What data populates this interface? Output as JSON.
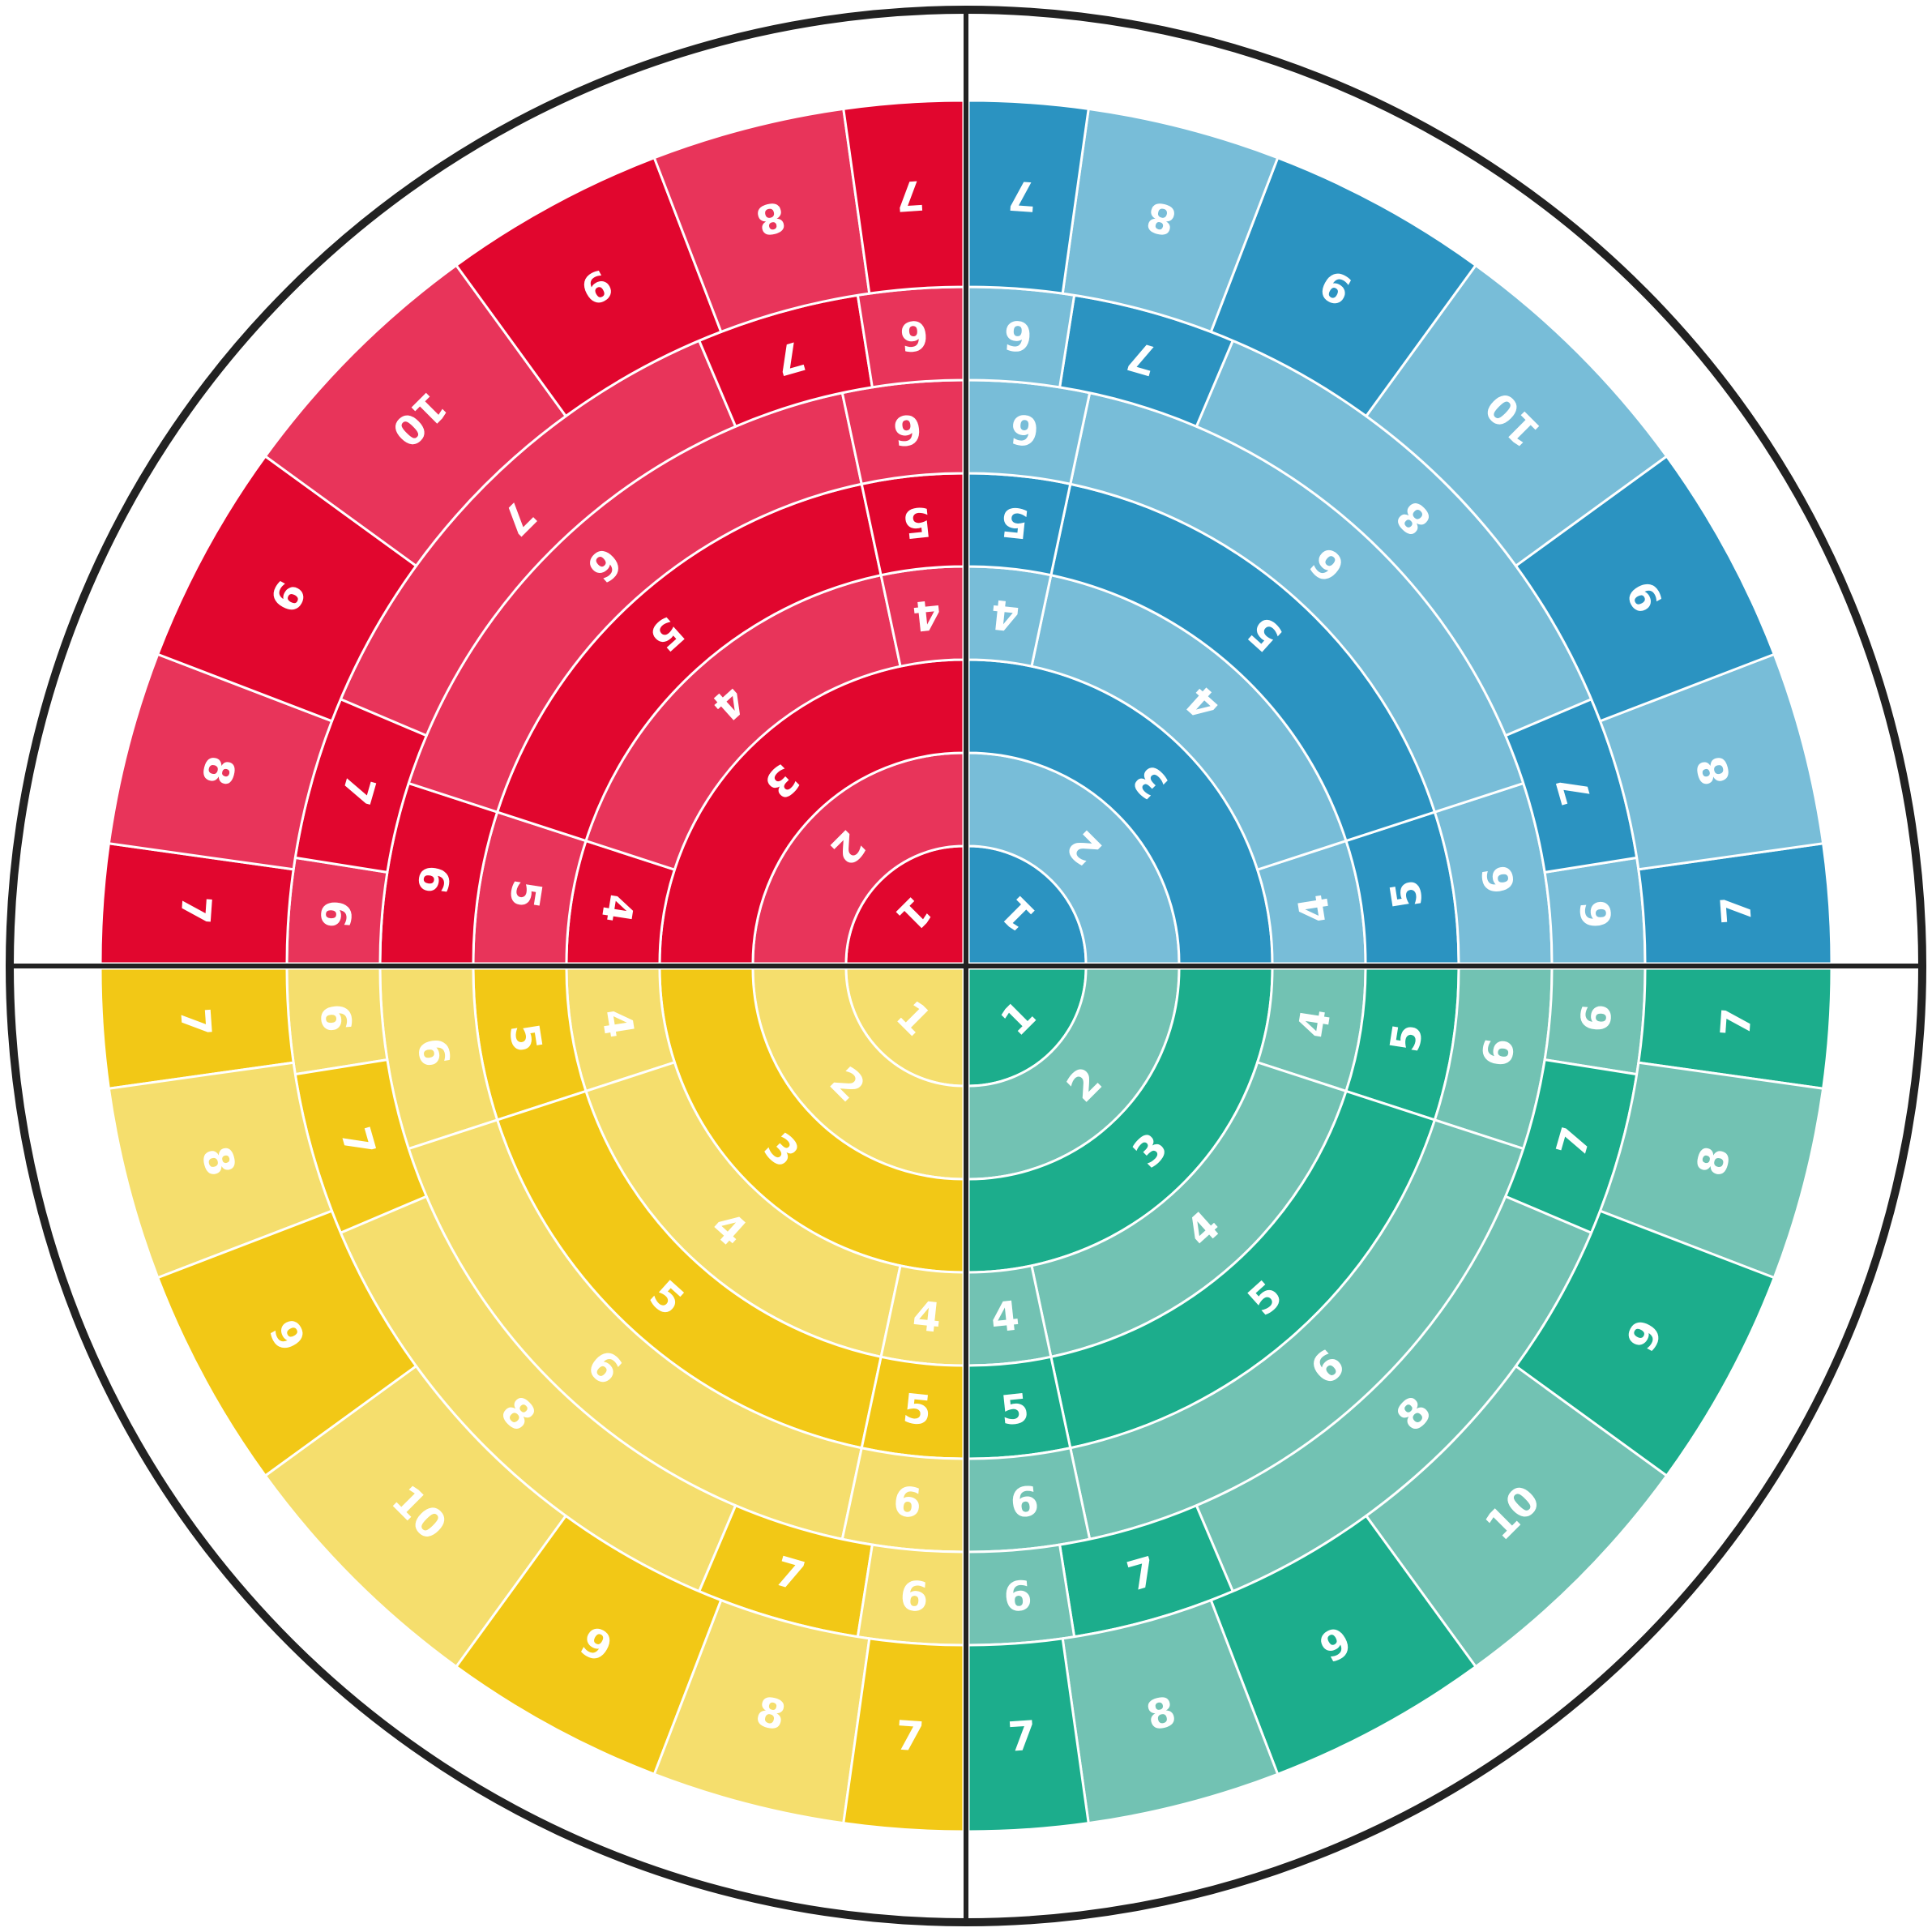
{
  "board": {
    "quadrants": [
      {
        "id": "red",
        "colors": {
          "dark": "#e1062e",
          "light": "#e8345a"
        },
        "rings": [
          {
            "segments": [
              {
                "label": "1",
                "shade": "dark"
              }
            ]
          },
          {
            "segments": [
              {
                "label": "2",
                "shade": "light"
              }
            ]
          },
          {
            "segments": [
              {
                "label": "3",
                "shade": "dark"
              }
            ]
          },
          {
            "segments": [
              {
                "label": "4",
                "shade": "dark"
              },
              {
                "label": "4",
                "shade": "light"
              },
              {
                "label": "4",
                "shade": "light"
              }
            ]
          },
          {
            "segments": [
              {
                "label": "5",
                "shade": "light"
              },
              {
                "label": "5",
                "shade": "dark"
              },
              {
                "label": "5",
                "shade": "dark"
              }
            ]
          },
          {
            "segments": [
              {
                "label": "6",
                "shade": "dark"
              },
              {
                "label": "6",
                "shade": "light"
              },
              {
                "label": "6",
                "shade": "light"
              }
            ]
          },
          {
            "segments": [
              {
                "label": "6",
                "shade": "light"
              },
              {
                "label": "7",
                "shade": "dark"
              },
              {
                "label": "7",
                "shade": "light"
              },
              {
                "label": "7",
                "shade": "dark"
              },
              {
                "label": "6",
                "shade": "light"
              }
            ]
          },
          {
            "segments": [
              {
                "label": "7",
                "shade": "dark"
              },
              {
                "label": "8",
                "shade": "light"
              },
              {
                "label": "9",
                "shade": "dark"
              },
              {
                "label": "10",
                "shade": "light"
              },
              {
                "label": "9",
                "shade": "dark"
              },
              {
                "label": "8",
                "shade": "light"
              },
              {
                "label": "7",
                "shade": "dark"
              }
            ]
          }
        ]
      },
      {
        "id": "blue",
        "colors": {
          "dark": "#2b93c1",
          "light": "#78bdd8"
        },
        "rings": [
          {
            "segments": [
              {
                "label": "1",
                "shade": "dark"
              }
            ]
          },
          {
            "segments": [
              {
                "label": "2",
                "shade": "light"
              }
            ]
          },
          {
            "segments": [
              {
                "label": "3",
                "shade": "dark"
              }
            ]
          },
          {
            "segments": [
              {
                "label": "4",
                "shade": "light"
              },
              {
                "label": "4",
                "shade": "light"
              },
              {
                "label": "4",
                "shade": "light"
              }
            ]
          },
          {
            "segments": [
              {
                "label": "5",
                "shade": "dark"
              },
              {
                "label": "5",
                "shade": "dark"
              },
              {
                "label": "5",
                "shade": "dark"
              }
            ]
          },
          {
            "segments": [
              {
                "label": "6",
                "shade": "light"
              },
              {
                "label": "6",
                "shade": "light"
              },
              {
                "label": "6",
                "shade": "light"
              }
            ]
          },
          {
            "segments": [
              {
                "label": "6",
                "shade": "light"
              },
              {
                "label": "7",
                "shade": "dark"
              },
              {
                "label": "8",
                "shade": "light"
              },
              {
                "label": "7",
                "shade": "dark"
              },
              {
                "label": "6",
                "shade": "light"
              }
            ]
          },
          {
            "segments": [
              {
                "label": "7",
                "shade": "dark"
              },
              {
                "label": "8",
                "shade": "light"
              },
              {
                "label": "9",
                "shade": "dark"
              },
              {
                "label": "10",
                "shade": "light"
              },
              {
                "label": "9",
                "shade": "dark"
              },
              {
                "label": "8",
                "shade": "light"
              },
              {
                "label": "7",
                "shade": "dark"
              }
            ]
          }
        ]
      },
      {
        "id": "green",
        "colors": {
          "dark": "#1cad8c",
          "light": "#72c2b3"
        },
        "rings": [
          {
            "segments": [
              {
                "label": "1",
                "shade": "dark"
              }
            ]
          },
          {
            "segments": [
              {
                "label": "2",
                "shade": "light"
              }
            ]
          },
          {
            "segments": [
              {
                "label": "3",
                "shade": "dark"
              }
            ]
          },
          {
            "segments": [
              {
                "label": "4",
                "shade": "light"
              },
              {
                "label": "4",
                "shade": "light"
              },
              {
                "label": "4",
                "shade": "light"
              }
            ]
          },
          {
            "segments": [
              {
                "label": "5",
                "shade": "dark"
              },
              {
                "label": "5",
                "shade": "dark"
              },
              {
                "label": "5",
                "shade": "dark"
              }
            ]
          },
          {
            "segments": [
              {
                "label": "6",
                "shade": "light"
              },
              {
                "label": "6",
                "shade": "light"
              },
              {
                "label": "6",
                "shade": "light"
              }
            ]
          },
          {
            "segments": [
              {
                "label": "6",
                "shade": "light"
              },
              {
                "label": "7",
                "shade": "dark"
              },
              {
                "label": "8",
                "shade": "light"
              },
              {
                "label": "7",
                "shade": "dark"
              },
              {
                "label": "6",
                "shade": "light"
              }
            ]
          },
          {
            "segments": [
              {
                "label": "7",
                "shade": "dark"
              },
              {
                "label": "8",
                "shade": "light"
              },
              {
                "label": "9",
                "shade": "dark"
              },
              {
                "label": "10",
                "shade": "light"
              },
              {
                "label": "9",
                "shade": "dark"
              },
              {
                "label": "8",
                "shade": "light"
              },
              {
                "label": "7",
                "shade": "dark"
              }
            ]
          }
        ]
      },
      {
        "id": "yellow",
        "colors": {
          "dark": "#f2c816",
          "light": "#f5de6d"
        },
        "rings": [
          {
            "segments": [
              {
                "label": "1",
                "shade": "light"
              }
            ]
          },
          {
            "segments": [
              {
                "label": "2",
                "shade": "light"
              }
            ]
          },
          {
            "segments": [
              {
                "label": "3",
                "shade": "dark"
              }
            ]
          },
          {
            "segments": [
              {
                "label": "4",
                "shade": "light"
              },
              {
                "label": "4",
                "shade": "light"
              },
              {
                "label": "4",
                "shade": "light"
              }
            ]
          },
          {
            "segments": [
              {
                "label": "5",
                "shade": "dark"
              },
              {
                "label": "5",
                "shade": "dark"
              },
              {
                "label": "5",
                "shade": "dark"
              }
            ]
          },
          {
            "segments": [
              {
                "label": "6",
                "shade": "light"
              },
              {
                "label": "6",
                "shade": "light"
              },
              {
                "label": "6",
                "shade": "light"
              }
            ]
          },
          {
            "segments": [
              {
                "label": "6",
                "shade": "light"
              },
              {
                "label": "7",
                "shade": "dark"
              },
              {
                "label": "8",
                "shade": "light"
              },
              {
                "label": "7",
                "shade": "dark"
              },
              {
                "label": "6",
                "shade": "light"
              }
            ]
          },
          {
            "segments": [
              {
                "label": "7",
                "shade": "dark"
              },
              {
                "label": "8",
                "shade": "light"
              },
              {
                "label": "9",
                "shade": "dark"
              },
              {
                "label": "10",
                "shade": "light"
              },
              {
                "label": "9",
                "shade": "dark"
              },
              {
                "label": "8",
                "shade": "light"
              },
              {
                "label": "7",
                "shade": "dark"
              }
            ]
          }
        ]
      }
    ],
    "divider_color": "#222222"
  }
}
